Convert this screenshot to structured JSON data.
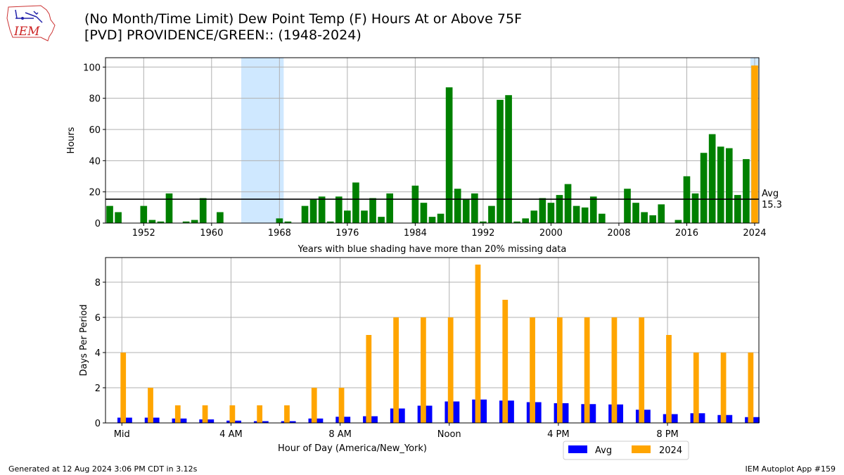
{
  "title_line1": "(No Month/Time Limit) Dew Point Temp (F) Hours At or Above 75F",
  "title_line2": "[PVD] PROVIDENCE/GREEN:: (1948-2024)",
  "logo_text": "IEM",
  "footer_left": "Generated at 12 Aug 2024 3:06 PM CDT in 3.12s",
  "footer_right": "IEM Autoplot App #159",
  "colors": {
    "yearly_bar": "#008000",
    "current_year_bar": "#FFA500",
    "avg_bar": "#0000FF",
    "missing_shade": "#CFE8FF",
    "grid": "#b0b0b0"
  },
  "chart_data": [
    {
      "type": "bar",
      "ylabel": "Hours",
      "xlabel": "Years with blue shading have more than 20% missing data",
      "xlim": [
        1947.5,
        2024.5
      ],
      "ylim": [
        0,
        106
      ],
      "xticks": [
        1952,
        1960,
        1968,
        1976,
        1984,
        1992,
        2000,
        2008,
        2016,
        2024
      ],
      "yticks": [
        0,
        20,
        40,
        60,
        80,
        100
      ],
      "grid": true,
      "missing_shading": [
        [
          1963.5,
          1968.5
        ],
        [
          2023.5,
          2024.5
        ]
      ],
      "avg_line": {
        "value": 15.3,
        "label_line1": "Avg",
        "label_line2": "15.3"
      },
      "highlight_year": 2024,
      "years": [
        1948,
        1949,
        1950,
        1951,
        1952,
        1953,
        1954,
        1955,
        1956,
        1957,
        1958,
        1959,
        1960,
        1961,
        1962,
        1963,
        1964,
        1965,
        1966,
        1967,
        1968,
        1969,
        1970,
        1971,
        1972,
        1973,
        1974,
        1975,
        1976,
        1977,
        1978,
        1979,
        1980,
        1981,
        1982,
        1983,
        1984,
        1985,
        1986,
        1987,
        1988,
        1989,
        1990,
        1991,
        1992,
        1993,
        1994,
        1995,
        1996,
        1997,
        1998,
        1999,
        2000,
        2001,
        2002,
        2003,
        2004,
        2005,
        2006,
        2007,
        2008,
        2009,
        2010,
        2011,
        2012,
        2013,
        2014,
        2015,
        2016,
        2017,
        2018,
        2019,
        2020,
        2021,
        2022,
        2023,
        2024
      ],
      "values": [
        11,
        7,
        0,
        0,
        11,
        2,
        1,
        19,
        0,
        1,
        2,
        16,
        0,
        7,
        0,
        0,
        0,
        0,
        0,
        0,
        3,
        1,
        0,
        11,
        15,
        17,
        1,
        17,
        8,
        26,
        8,
        16,
        4,
        19,
        0,
        0,
        24,
        13,
        4,
        6,
        87,
        22,
        15,
        19,
        1,
        11,
        79,
        82,
        1,
        3,
        8,
        16,
        13,
        18,
        25,
        11,
        10,
        17,
        6,
        0,
        0,
        22,
        13,
        7,
        5,
        12,
        0,
        2,
        30,
        19,
        45,
        57,
        49,
        48,
        18,
        41,
        101
      ]
    },
    {
      "type": "bar",
      "ylabel": "Days Per Period",
      "xlabel": "Hour of Day (America/New_York)",
      "xlim": [
        -0.6,
        23.35
      ],
      "ylim": [
        0,
        9.4
      ],
      "xtick_positions": [
        0,
        4,
        8,
        12,
        16,
        20
      ],
      "xtick_labels": [
        "Mid",
        "4 AM",
        "8 AM",
        "Noon",
        "4 PM",
        "8 PM"
      ],
      "yticks": [
        0,
        2,
        4,
        6,
        8
      ],
      "grid": true,
      "legend_position": "bottom-right",
      "categories": [
        0,
        1,
        2,
        3,
        4,
        5,
        6,
        7,
        8,
        9,
        10,
        11,
        12,
        13,
        14,
        15,
        16,
        17,
        18,
        19,
        20,
        21,
        22,
        23
      ],
      "series": [
        {
          "name": "Avg",
          "values": [
            0.3,
            0.3,
            0.25,
            0.2,
            0.13,
            0.1,
            0.1,
            0.25,
            0.35,
            0.38,
            0.82,
            0.98,
            1.22,
            1.33,
            1.27,
            1.18,
            1.12,
            1.07,
            1.05,
            0.75,
            0.5,
            0.55,
            0.45,
            0.33
          ]
        },
        {
          "name": "2024",
          "values": [
            4,
            2,
            1,
            1,
            1,
            1,
            1,
            2,
            2,
            5,
            6,
            6,
            6,
            9,
            7,
            6,
            6,
            6,
            6,
            6,
            5,
            4,
            4,
            4
          ]
        }
      ]
    }
  ]
}
